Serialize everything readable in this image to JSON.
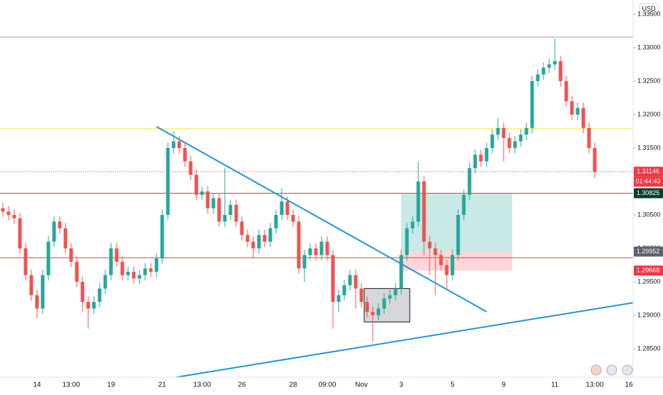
{
  "chart_data": {
    "type": "candlestick",
    "currency": "USD",
    "categories": [
      null,
      null,
      null,
      null,
      null,
      null,
      "14",
      null,
      null,
      null,
      null,
      null,
      "13:00",
      null,
      null,
      null,
      null,
      null,
      null,
      "19",
      null,
      null,
      null,
      null,
      null,
      null,
      null,
      null,
      "21",
      null,
      null,
      null,
      null,
      null,
      null,
      "13:00",
      null,
      null,
      null,
      null,
      null,
      null,
      "26",
      null,
      null,
      null,
      null,
      null,
      null,
      null,
      null,
      "28",
      null,
      null,
      null,
      null,
      null,
      "09:00",
      null,
      null,
      null,
      null,
      null,
      "Nov",
      null,
      null,
      null,
      null,
      null,
      null,
      "3",
      null,
      null,
      null,
      null,
      null,
      null,
      null,
      null,
      "5",
      null,
      null,
      null,
      null,
      null,
      null,
      null,
      null,
      "9",
      null,
      null,
      null,
      null,
      null,
      null,
      null,
      null,
      "11",
      null,
      null,
      null,
      null,
      null,
      null,
      "13:00",
      null,
      null,
      null,
      null,
      null,
      "16"
    ],
    "open": [
      1.306,
      1.3055,
      1.305,
      1.3045,
      1.3,
      1.296,
      1.293,
      1.291,
      1.296,
      1.301,
      1.304,
      1.303,
      1.3,
      1.298,
      1.295,
      1.292,
      1.291,
      1.292,
      1.294,
      1.296,
      1.3,
      1.298,
      1.296,
      1.2965,
      1.2955,
      1.296,
      1.297,
      1.2965,
      1.2985,
      1.305,
      1.315,
      1.316,
      1.315,
      1.313,
      1.311,
      1.308,
      1.3085,
      1.306,
      1.3075,
      1.304,
      1.305,
      1.3065,
      1.304,
      1.302,
      1.301,
      1.3,
      1.302,
      1.301,
      1.303,
      1.305,
      1.307,
      1.305,
      1.304,
      1.297,
      1.299,
      1.3,
      1.299,
      1.301,
      1.299,
      1.292,
      1.293,
      1.2945,
      1.296,
      1.294,
      1.292,
      1.2905,
      1.29,
      1.291,
      1.2925,
      1.293,
      1.294,
      1.299,
      1.303,
      1.304,
      1.31,
      1.301,
      1.3,
      1.299,
      1.2975,
      1.296,
      1.299,
      1.305,
      1.308,
      1.312,
      1.314,
      1.313,
      1.315,
      1.317,
      1.318,
      1.3165,
      1.315,
      1.316,
      1.317,
      1.318,
      1.325,
      1.326,
      1.327,
      1.3275,
      1.328,
      1.325,
      1.322,
      1.32,
      1.321,
      1.318,
      1.315,
      null,
      null,
      null,
      null,
      null,
      null
    ],
    "high": [
      1.3068,
      1.3063,
      1.3058,
      1.3053,
      1.3008,
      1.2968,
      1.2938,
      1.2968,
      1.3018,
      1.3048,
      1.3048,
      1.3038,
      1.3008,
      1.2988,
      1.2958,
      1.2928,
      1.2928,
      1.2948,
      1.2968,
      1.3008,
      1.3008,
      1.2988,
      1.2973,
      1.2973,
      1.2968,
      1.2978,
      1.2978,
      1.2993,
      1.3058,
      1.3158,
      1.3175,
      1.3168,
      1.3158,
      1.3138,
      1.3118,
      1.3093,
      1.3093,
      1.3083,
      1.3083,
      1.312,
      1.3073,
      1.3073,
      1.3048,
      1.3028,
      1.3018,
      1.3028,
      1.3028,
      1.3038,
      1.3058,
      1.309,
      1.3078,
      1.3058,
      1.3048,
      1.2998,
      1.3008,
      1.3008,
      1.3018,
      1.3018,
      1.2998,
      1.2938,
      1.2953,
      1.2968,
      1.2968,
      1.2948,
      1.2928,
      1.2913,
      1.2918,
      1.2933,
      1.2938,
      1.2948,
      1.2998,
      1.3038,
      1.3048,
      1.313,
      1.3108,
      1.3018,
      1.3008,
      1.2998,
      1.2983,
      1.2998,
      1.3058,
      1.3088,
      1.3128,
      1.3148,
      1.3148,
      1.3158,
      1.3178,
      1.3195,
      1.3188,
      1.3173,
      1.3168,
      1.3178,
      1.3188,
      1.3258,
      1.3268,
      1.3278,
      1.3283,
      1.3313,
      1.3288,
      1.3258,
      1.3228,
      1.3218,
      1.3218,
      1.3188,
      1.3158,
      null,
      null,
      null,
      null,
      null,
      null
    ],
    "low": [
      1.3047,
      1.3042,
      1.3037,
      1.2992,
      1.2952,
      1.2922,
      1.2895,
      1.2902,
      1.2952,
      1.3002,
      1.3022,
      1.2992,
      1.2972,
      1.2942,
      1.2905,
      1.288,
      1.2902,
      1.2912,
      1.2932,
      1.2952,
      1.2972,
      1.2952,
      1.2952,
      1.2947,
      1.2947,
      1.2952,
      1.2957,
      1.2957,
      1.2977,
      1.3042,
      1.3142,
      1.3142,
      1.3122,
      1.3102,
      1.3072,
      1.3072,
      1.3052,
      1.3052,
      1.3032,
      1.3032,
      1.3042,
      1.3032,
      1.3012,
      1.3002,
      1.2985,
      1.2992,
      1.3002,
      1.3002,
      1.3022,
      1.3042,
      1.3042,
      1.3032,
      1.2962,
      1.295,
      1.2982,
      1.2982,
      1.2982,
      1.2982,
      1.288,
      1.2905,
      1.2922,
      1.2937,
      1.291,
      1.2912,
      1.2897,
      1.286,
      1.2892,
      1.2902,
      1.2917,
      1.2922,
      1.2932,
      1.2982,
      1.3022,
      1.3032,
      1.299,
      1.296,
      1.293,
      1.2967,
      1.294,
      1.2952,
      1.2982,
      1.3042,
      1.3072,
      1.3112,
      1.3122,
      1.3122,
      1.3142,
      1.3162,
      1.313,
      1.3142,
      1.3142,
      1.3152,
      1.3162,
      1.3172,
      1.3242,
      1.3252,
      1.3262,
      1.3267,
      1.3242,
      1.3212,
      1.3192,
      1.3192,
      1.3172,
      1.3142,
      1.3105,
      null,
      null,
      null,
      null,
      null,
      null
    ],
    "close": [
      1.3055,
      1.305,
      1.3045,
      1.3,
      1.296,
      1.293,
      1.291,
      1.296,
      1.301,
      1.304,
      1.303,
      1.3,
      1.298,
      1.295,
      1.292,
      1.291,
      1.292,
      1.294,
      1.296,
      1.3,
      1.298,
      1.296,
      1.2965,
      1.2955,
      1.296,
      1.297,
      1.2965,
      1.2985,
      1.305,
      1.315,
      1.316,
      1.315,
      1.313,
      1.311,
      1.308,
      1.3085,
      1.306,
      1.3075,
      1.304,
      1.305,
      1.3065,
      1.304,
      1.302,
      1.301,
      1.3,
      1.302,
      1.301,
      1.303,
      1.305,
      1.307,
      1.305,
      1.304,
      1.297,
      1.299,
      1.3,
      1.299,
      1.301,
      1.299,
      1.292,
      1.293,
      1.2945,
      1.296,
      1.294,
      1.292,
      1.2905,
      1.29,
      1.291,
      1.2925,
      1.293,
      1.294,
      1.299,
      1.303,
      1.304,
      1.31,
      1.301,
      1.3,
      1.299,
      1.2975,
      1.296,
      1.299,
      1.305,
      1.308,
      1.312,
      1.314,
      1.313,
      1.315,
      1.317,
      1.318,
      1.3165,
      1.315,
      1.316,
      1.317,
      1.318,
      1.325,
      1.326,
      1.327,
      1.3275,
      1.328,
      1.325,
      1.322,
      1.32,
      1.321,
      1.318,
      1.315,
      1.3114,
      null,
      null,
      null,
      null,
      null,
      null
    ],
    "up_color": "#26a69a",
    "down_color": "#ef5350",
    "ylim": [
      1.28074,
      1.33713
    ],
    "yticks": [
      {
        "value": 1.285,
        "label": "1.28500"
      },
      {
        "value": 1.29,
        "label": "1.29000"
      },
      {
        "value": 1.295,
        "label": "1.29500"
      },
      {
        "value": 1.3,
        "label": "1.30000"
      },
      {
        "value": 1.305,
        "label": "1.30500"
      },
      {
        "value": 1.31,
        "label": "1.31000"
      },
      {
        "value": 1.315,
        "label": "1.31500"
      },
      {
        "value": 1.32,
        "label": "1.32000"
      },
      {
        "value": 1.325,
        "label": "1.32500"
      },
      {
        "value": 1.33,
        "label": "1.33000"
      },
      {
        "value": 1.335,
        "label": "1.33500"
      }
    ],
    "horizontal_lines": [
      {
        "price": 1.3316,
        "color": "#9c8fd6"
      },
      {
        "price": 1.3179,
        "color": "#f5e84a"
      },
      {
        "price": 1.30825,
        "color": "#e0403a"
      },
      {
        "price": 1.2986,
        "color": "#e0403a"
      }
    ],
    "price_labels": [
      {
        "value": 1.31146,
        "color": "#f23645"
      },
      {
        "value": 1.30825,
        "color": "#0b3d2e"
      },
      {
        "value": 1.29952,
        "color": "#5d606b"
      },
      {
        "value": 1.29668,
        "color": "#f23645"
      }
    ],
    "countdown": "01:44:43",
    "trendlines": [
      {
        "x": [
          27,
          85
        ],
        "y": [
          1.31819,
          1.29053
        ],
        "color": "#2196d8"
      },
      {
        "x": [
          30.5,
          111
        ],
        "y": [
          1.28074,
          1.29191
        ],
        "color": "#2196d8"
      }
    ],
    "position": {
      "x": [
        70,
        89.5
      ],
      "target": 1.30825,
      "entry": 1.29952,
      "stop": 1.29668
    },
    "box": {
      "x": [
        63.5,
        71.5
      ],
      "y": [
        1.289,
        1.294
      ]
    }
  }
}
